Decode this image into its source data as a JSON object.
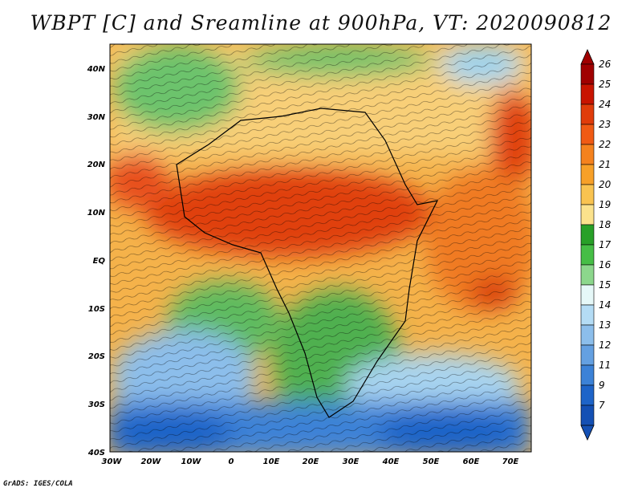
{
  "title": "WBPT [C] and Sreamline at 900hPa, VT: 2020090812",
  "credit": "GrADS: IGES/COLA",
  "map": {
    "lat_labels": [
      "40N",
      "30N",
      "20N",
      "10N",
      "EQ",
      "10S",
      "20S",
      "30S",
      "40S"
    ],
    "lon_labels": [
      "30W",
      "20W",
      "10W",
      "0",
      "10E",
      "20E",
      "30E",
      "40E",
      "50E",
      "60E",
      "70E"
    ],
    "lat_range": [
      -40,
      45
    ],
    "lon_range": [
      -30,
      75
    ]
  },
  "colorbar": {
    "levels": [
      "26",
      "25",
      "24",
      "23",
      "22",
      "21",
      "20",
      "19",
      "18",
      "17",
      "16",
      "15",
      "14",
      "13",
      "12",
      "11",
      "9",
      "7"
    ],
    "colors": [
      "#a00000",
      "#c81400",
      "#e03c0a",
      "#f05a14",
      "#f5821e",
      "#f7a028",
      "#f9c350",
      "#fbe28c",
      "#28a028",
      "#46be46",
      "#8cd78c",
      "#e6f8f8",
      "#b4dcf5",
      "#8cbeeb",
      "#64a0e1",
      "#3c82d7",
      "#1e64c8",
      "#1450b4"
    ]
  }
}
